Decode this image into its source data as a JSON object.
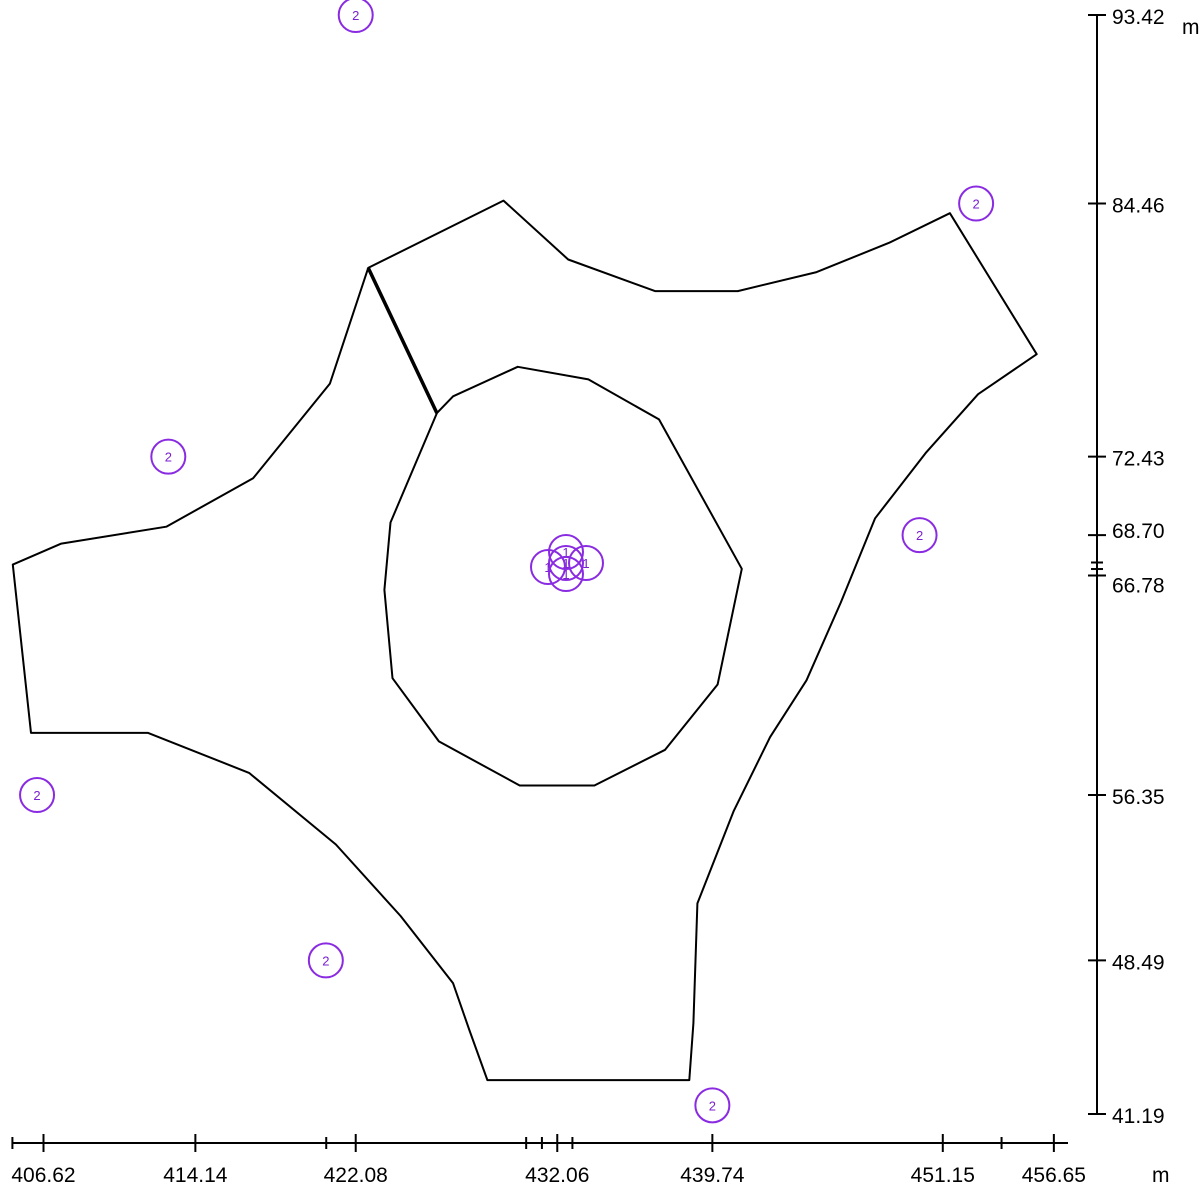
{
  "view": {
    "x_range": [
      405.06,
      457.35
    ],
    "y_range": [
      41.19,
      93.42
    ]
  },
  "x_axis": {
    "unit": "m",
    "ticks": [
      {
        "value": 406.62,
        "label": "406.62"
      },
      {
        "value": 414.14,
        "label": "414.14"
      },
      {
        "value": 422.08,
        "label": "422.08"
      },
      {
        "value": 432.06,
        "label": "432.06"
      },
      {
        "value": 439.74,
        "label": "439.74"
      },
      {
        "value": 451.15,
        "label": "451.15"
      },
      {
        "value": 456.65,
        "label": "456.65"
      }
    ],
    "unlabeled_ticks": [
      405.08,
      420.62,
      430.52,
      431.3,
      432.81,
      454.06
    ]
  },
  "y_axis": {
    "unit": "m",
    "ticks": [
      {
        "value": 93.42,
        "label": "93.42"
      },
      {
        "value": 84.46,
        "label": "84.46"
      },
      {
        "value": 72.43,
        "label": "72.43"
      },
      {
        "value": 68.7,
        "label": "68.70"
      },
      {
        "value": 66.78,
        "label": "66.78"
      },
      {
        "value": 56.35,
        "label": "56.35"
      },
      {
        "value": 48.49,
        "label": "48.49"
      },
      {
        "value": 41.19,
        "label": "41.19"
      }
    ],
    "unlabeled_ticks": [
      67.09,
      67.4
    ]
  },
  "outer_boundary": [
    [
      405.1,
      67.3
    ],
    [
      407.5,
      68.3
    ],
    [
      412.7,
      69.1
    ],
    [
      417.0,
      71.4
    ],
    [
      420.8,
      75.9
    ],
    [
      422.7,
      81.4
    ],
    [
      429.4,
      84.6
    ],
    [
      432.6,
      81.8
    ],
    [
      436.9,
      80.3
    ],
    [
      441.0,
      80.3
    ],
    [
      444.9,
      81.2
    ],
    [
      448.5,
      82.6
    ],
    [
      451.5,
      84.0
    ],
    [
      455.8,
      77.3
    ],
    [
      452.9,
      75.4
    ],
    [
      450.3,
      72.6
    ],
    [
      447.8,
      69.5
    ],
    [
      446.1,
      65.5
    ],
    [
      444.4,
      61.8
    ],
    [
      442.6,
      59.1
    ],
    [
      440.8,
      55.6
    ],
    [
      439.0,
      51.2
    ],
    [
      438.8,
      45.5
    ],
    [
      438.6,
      42.8
    ],
    [
      428.6,
      42.8
    ],
    [
      427.7,
      45.2
    ],
    [
      426.9,
      47.4
    ],
    [
      424.3,
      50.6
    ],
    [
      421.1,
      54.0
    ],
    [
      416.8,
      57.4
    ],
    [
      411.8,
      59.3
    ],
    [
      406.0,
      59.3
    ]
  ],
  "inner_ring": [
    [
      426.1,
      74.5
    ],
    [
      426.9,
      75.3
    ],
    [
      430.1,
      76.7
    ],
    [
      433.6,
      76.1
    ],
    [
      437.1,
      74.2
    ],
    [
      441.2,
      67.1
    ],
    [
      440.0,
      61.6
    ],
    [
      437.4,
      58.5
    ],
    [
      433.9,
      56.8
    ],
    [
      430.2,
      56.8
    ],
    [
      426.2,
      58.9
    ],
    [
      423.9,
      61.9
    ],
    [
      423.5,
      66.1
    ],
    [
      423.8,
      69.3
    ]
  ],
  "connector": [
    [
      422.7,
      81.4
    ],
    [
      426.1,
      74.5
    ]
  ],
  "markers": [
    {
      "label": "2",
      "x": 422.08,
      "y": 93.42
    },
    {
      "label": "2",
      "x": 452.8,
      "y": 84.46
    },
    {
      "label": "2",
      "x": 412.8,
      "y": 72.43
    },
    {
      "label": "2",
      "x": 450.0,
      "y": 68.7
    },
    {
      "label": "2",
      "x": 406.3,
      "y": 56.35
    },
    {
      "label": "2",
      "x": 420.6,
      "y": 48.49
    },
    {
      "label": "2",
      "x": 439.74,
      "y": 41.6
    },
    {
      "label": "1",
      "x": 430.7,
      "y": 67.1
    },
    {
      "label": "1",
      "x": 432.06,
      "y": 67.55
    },
    {
      "label": "1",
      "x": 432.06,
      "y": 67.4
    },
    {
      "label": "1",
      "x": 432.06,
      "y": 67.55
    },
    {
      "label": "1",
      "x": 432.06,
      "y": 66.95
    }
  ]
}
